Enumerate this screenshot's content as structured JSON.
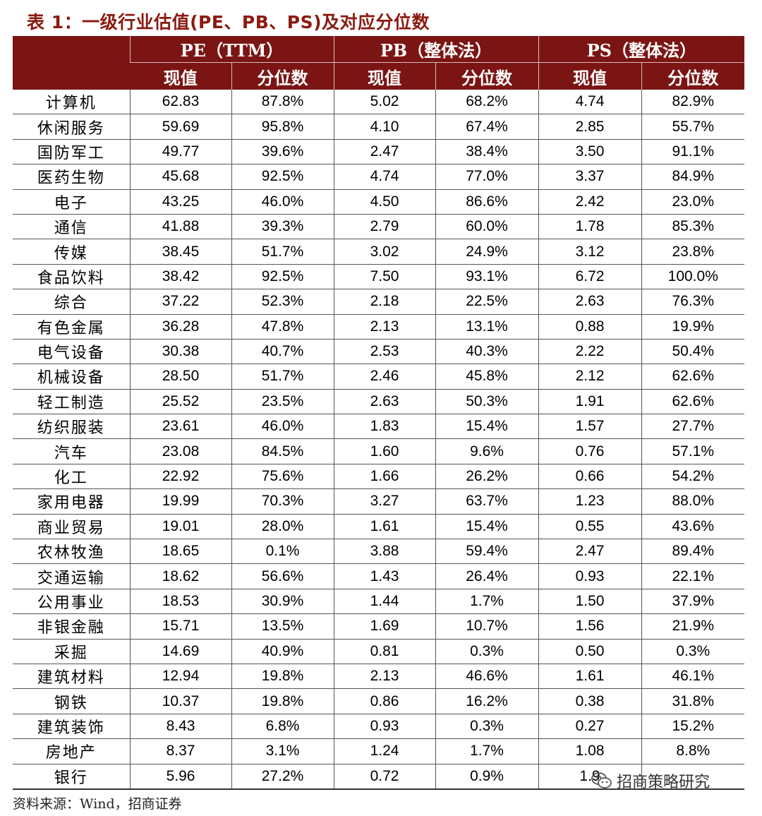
{
  "title": "表 1：一级行业估值(PE、PB、PS)及对应分位数",
  "header": {
    "groups": [
      "PE（TTM）",
      "PB（整体法）",
      "PS（整体法）"
    ],
    "sub": [
      "现值",
      "分位数",
      "现值",
      "分位数",
      "现值",
      "分位数"
    ]
  },
  "rows": [
    {
      "name": "计算机",
      "cells": [
        "62.83",
        "87.8%",
        "5.02",
        "68.2%",
        "4.74",
        "82.9%"
      ]
    },
    {
      "name": "休闲服务",
      "cells": [
        "59.69",
        "95.8%",
        "4.10",
        "67.4%",
        "2.85",
        "55.7%"
      ]
    },
    {
      "name": "国防军工",
      "cells": [
        "49.77",
        "39.6%",
        "2.47",
        "38.4%",
        "3.50",
        "91.1%"
      ]
    },
    {
      "name": "医药生物",
      "cells": [
        "45.68",
        "92.5%",
        "4.74",
        "77.0%",
        "3.37",
        "84.9%"
      ]
    },
    {
      "name": "电子",
      "cells": [
        "43.25",
        "46.0%",
        "4.50",
        "86.6%",
        "2.42",
        "23.0%"
      ]
    },
    {
      "name": "通信",
      "cells": [
        "41.88",
        "39.3%",
        "2.79",
        "60.0%",
        "1.78",
        "85.3%"
      ]
    },
    {
      "name": "传媒",
      "cells": [
        "38.45",
        "51.7%",
        "3.02",
        "24.9%",
        "3.12",
        "23.8%"
      ]
    },
    {
      "name": "食品饮料",
      "cells": [
        "38.42",
        "92.5%",
        "7.50",
        "93.1%",
        "6.72",
        "100.0%"
      ]
    },
    {
      "name": "综合",
      "cells": [
        "37.22",
        "52.3%",
        "2.18",
        "22.5%",
        "2.63",
        "76.3%"
      ]
    },
    {
      "name": "有色金属",
      "cells": [
        "36.28",
        "47.8%",
        "2.13",
        "13.1%",
        "0.88",
        "19.9%"
      ]
    },
    {
      "name": "电气设备",
      "cells": [
        "30.38",
        "40.7%",
        "2.53",
        "40.3%",
        "2.22",
        "50.4%"
      ]
    },
    {
      "name": "机械设备",
      "cells": [
        "28.50",
        "51.7%",
        "2.46",
        "45.8%",
        "2.12",
        "62.6%"
      ]
    },
    {
      "name": "轻工制造",
      "cells": [
        "25.52",
        "23.5%",
        "2.63",
        "50.3%",
        "1.91",
        "62.6%"
      ]
    },
    {
      "name": "纺织服装",
      "cells": [
        "23.61",
        "46.0%",
        "1.83",
        "15.4%",
        "1.57",
        "27.7%"
      ]
    },
    {
      "name": "汽车",
      "cells": [
        "23.08",
        "84.5%",
        "1.60",
        "9.6%",
        "0.76",
        "57.1%"
      ]
    },
    {
      "name": "化工",
      "cells": [
        "22.92",
        "75.6%",
        "1.66",
        "26.2%",
        "0.66",
        "54.2%"
      ]
    },
    {
      "name": "家用电器",
      "cells": [
        "19.99",
        "70.3%",
        "3.27",
        "63.7%",
        "1.23",
        "88.0%"
      ]
    },
    {
      "name": "商业贸易",
      "cells": [
        "19.01",
        "28.0%",
        "1.61",
        "15.4%",
        "0.55",
        "43.6%"
      ]
    },
    {
      "name": "农林牧渔",
      "cells": [
        "18.65",
        "0.1%",
        "3.88",
        "59.4%",
        "2.47",
        "89.4%"
      ]
    },
    {
      "name": "交通运输",
      "cells": [
        "18.62",
        "56.6%",
        "1.43",
        "26.4%",
        "0.93",
        "22.1%"
      ]
    },
    {
      "name": "公用事业",
      "cells": [
        "18.53",
        "30.9%",
        "1.44",
        "1.7%",
        "1.50",
        "37.9%"
      ]
    },
    {
      "name": "非银金融",
      "cells": [
        "15.71",
        "13.5%",
        "1.69",
        "10.7%",
        "1.56",
        "21.9%"
      ]
    },
    {
      "name": "采掘",
      "cells": [
        "14.69",
        "40.9%",
        "0.81",
        "0.3%",
        "0.50",
        "0.3%"
      ]
    },
    {
      "name": "建筑材料",
      "cells": [
        "12.94",
        "19.8%",
        "2.13",
        "46.6%",
        "1.61",
        "46.1%"
      ]
    },
    {
      "name": "钢铁",
      "cells": [
        "10.37",
        "19.8%",
        "0.86",
        "16.2%",
        "0.38",
        "31.8%"
      ]
    },
    {
      "name": "建筑装饰",
      "cells": [
        "8.43",
        "6.8%",
        "0.93",
        "0.3%",
        "0.27",
        "15.2%"
      ]
    },
    {
      "name": "房地产",
      "cells": [
        "8.37",
        "3.1%",
        "1.24",
        "1.7%",
        "1.08",
        "8.8%"
      ]
    },
    {
      "name": "银行",
      "cells": [
        "5.96",
        "27.2%",
        "0.72",
        "0.9%",
        "1.9",
        ""
      ]
    }
  ],
  "source": "资料来源：Wind，招商证券",
  "watermark": {
    "text": "招商策略研究",
    "icon": "wechat-icon"
  },
  "colors": {
    "header_bg": "#7b1513",
    "title": "#8b1a10"
  }
}
